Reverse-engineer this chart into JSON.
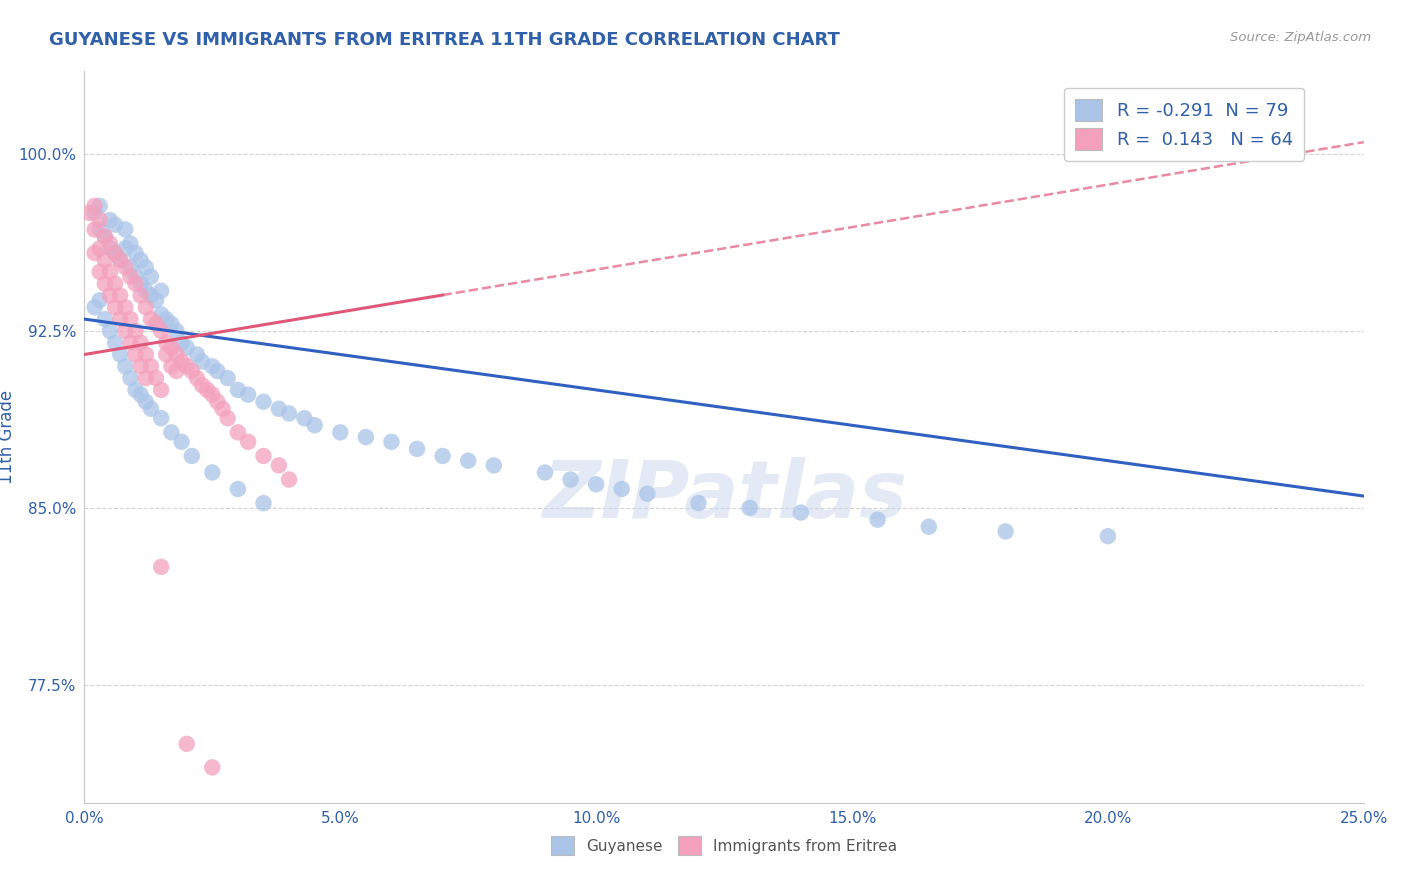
{
  "title": "GUYANESE VS IMMIGRANTS FROM ERITREA 11TH GRADE CORRELATION CHART",
  "source_text": "Source: ZipAtlas.com",
  "ylabel": "11th Grade",
  "xlim": [
    0.0,
    0.25
  ],
  "ylim": [
    0.725,
    1.035
  ],
  "xtick_labels": [
    "0.0%",
    "5.0%",
    "10.0%",
    "15.0%",
    "20.0%",
    "25.0%"
  ],
  "xtick_vals": [
    0.0,
    0.05,
    0.1,
    0.15,
    0.2,
    0.25
  ],
  "ytick_labels": [
    "77.5%",
    "85.0%",
    "92.5%",
    "100.0%"
  ],
  "ytick_vals": [
    0.775,
    0.85,
    0.925,
    1.0
  ],
  "legend_labels": [
    "Guyanese",
    "Immigrants from Eritrea"
  ],
  "R_guyanese": -0.291,
  "N_guyanese": 79,
  "R_eritrea": 0.143,
  "N_eritrea": 64,
  "guyanese_color": "#aac4e8",
  "eritrea_color": "#f4a0bc",
  "trend_guyanese_color": "#3060c0",
  "trend_eritrea_color": "#e05878",
  "watermark": "ZIPatlas",
  "background_color": "#ffffff",
  "grid_color": "#c8c8c8",
  "title_color": "#3060a8",
  "axis_label_color": "#3060a8",
  "tick_color": "#3060a8",
  "guyanese_scatter_x": [
    0.002,
    0.003,
    0.003,
    0.004,
    0.005,
    0.005,
    0.006,
    0.006,
    0.007,
    0.008,
    0.008,
    0.009,
    0.009,
    0.01,
    0.01,
    0.011,
    0.011,
    0.012,
    0.012,
    0.013,
    0.013,
    0.014,
    0.015,
    0.015,
    0.016,
    0.017,
    0.018,
    0.019,
    0.02,
    0.022,
    0.023,
    0.025,
    0.026,
    0.028,
    0.03,
    0.032,
    0.035,
    0.038,
    0.04,
    0.043,
    0.045,
    0.05,
    0.055,
    0.06,
    0.065,
    0.07,
    0.075,
    0.08,
    0.09,
    0.095,
    0.1,
    0.105,
    0.11,
    0.12,
    0.13,
    0.14,
    0.155,
    0.165,
    0.18,
    0.2,
    0.002,
    0.003,
    0.004,
    0.005,
    0.006,
    0.007,
    0.008,
    0.009,
    0.01,
    0.011,
    0.012,
    0.013,
    0.015,
    0.017,
    0.019,
    0.021,
    0.025,
    0.03,
    0.035
  ],
  "guyanese_scatter_y": [
    0.975,
    0.968,
    0.978,
    0.965,
    0.96,
    0.972,
    0.958,
    0.97,
    0.955,
    0.96,
    0.968,
    0.952,
    0.962,
    0.948,
    0.958,
    0.945,
    0.955,
    0.942,
    0.952,
    0.94,
    0.948,
    0.938,
    0.932,
    0.942,
    0.93,
    0.928,
    0.925,
    0.92,
    0.918,
    0.915,
    0.912,
    0.91,
    0.908,
    0.905,
    0.9,
    0.898,
    0.895,
    0.892,
    0.89,
    0.888,
    0.885,
    0.882,
    0.88,
    0.878,
    0.875,
    0.872,
    0.87,
    0.868,
    0.865,
    0.862,
    0.86,
    0.858,
    0.856,
    0.852,
    0.85,
    0.848,
    0.845,
    0.842,
    0.84,
    0.838,
    0.935,
    0.938,
    0.93,
    0.925,
    0.92,
    0.915,
    0.91,
    0.905,
    0.9,
    0.898,
    0.895,
    0.892,
    0.888,
    0.882,
    0.878,
    0.872,
    0.865,
    0.858,
    0.852
  ],
  "eritrea_scatter_x": [
    0.001,
    0.002,
    0.002,
    0.003,
    0.003,
    0.004,
    0.004,
    0.005,
    0.005,
    0.006,
    0.006,
    0.007,
    0.007,
    0.008,
    0.008,
    0.009,
    0.009,
    0.01,
    0.01,
    0.011,
    0.011,
    0.012,
    0.012,
    0.013,
    0.013,
    0.014,
    0.014,
    0.015,
    0.015,
    0.016,
    0.016,
    0.017,
    0.017,
    0.018,
    0.018,
    0.019,
    0.02,
    0.021,
    0.022,
    0.023,
    0.024,
    0.025,
    0.026,
    0.027,
    0.028,
    0.03,
    0.032,
    0.035,
    0.038,
    0.04,
    0.002,
    0.003,
    0.004,
    0.005,
    0.006,
    0.007,
    0.008,
    0.009,
    0.01,
    0.011,
    0.012,
    0.015,
    0.02,
    0.025
  ],
  "eritrea_scatter_y": [
    0.975,
    0.978,
    0.968,
    0.972,
    0.96,
    0.965,
    0.955,
    0.962,
    0.95,
    0.958,
    0.945,
    0.955,
    0.94,
    0.952,
    0.935,
    0.948,
    0.93,
    0.945,
    0.925,
    0.94,
    0.92,
    0.935,
    0.915,
    0.93,
    0.91,
    0.928,
    0.905,
    0.925,
    0.9,
    0.92,
    0.915,
    0.918,
    0.91,
    0.915,
    0.908,
    0.912,
    0.91,
    0.908,
    0.905,
    0.902,
    0.9,
    0.898,
    0.895,
    0.892,
    0.888,
    0.882,
    0.878,
    0.872,
    0.868,
    0.862,
    0.958,
    0.95,
    0.945,
    0.94,
    0.935,
    0.93,
    0.925,
    0.92,
    0.915,
    0.91,
    0.905,
    0.825,
    0.75,
    0.74
  ],
  "trend_g_x0": 0.0,
  "trend_g_y0": 0.93,
  "trend_g_x1": 0.25,
  "trend_g_y1": 0.855,
  "trend_e_x0": 0.0,
  "trend_e_y0": 0.915,
  "trend_e_x1": 0.25,
  "trend_e_y1": 0.97,
  "trend_e_dash_x0": 0.07,
  "trend_e_dash_y0": 0.955,
  "trend_e_dash_x1": 0.25,
  "trend_e_dash_y1": 1.005
}
